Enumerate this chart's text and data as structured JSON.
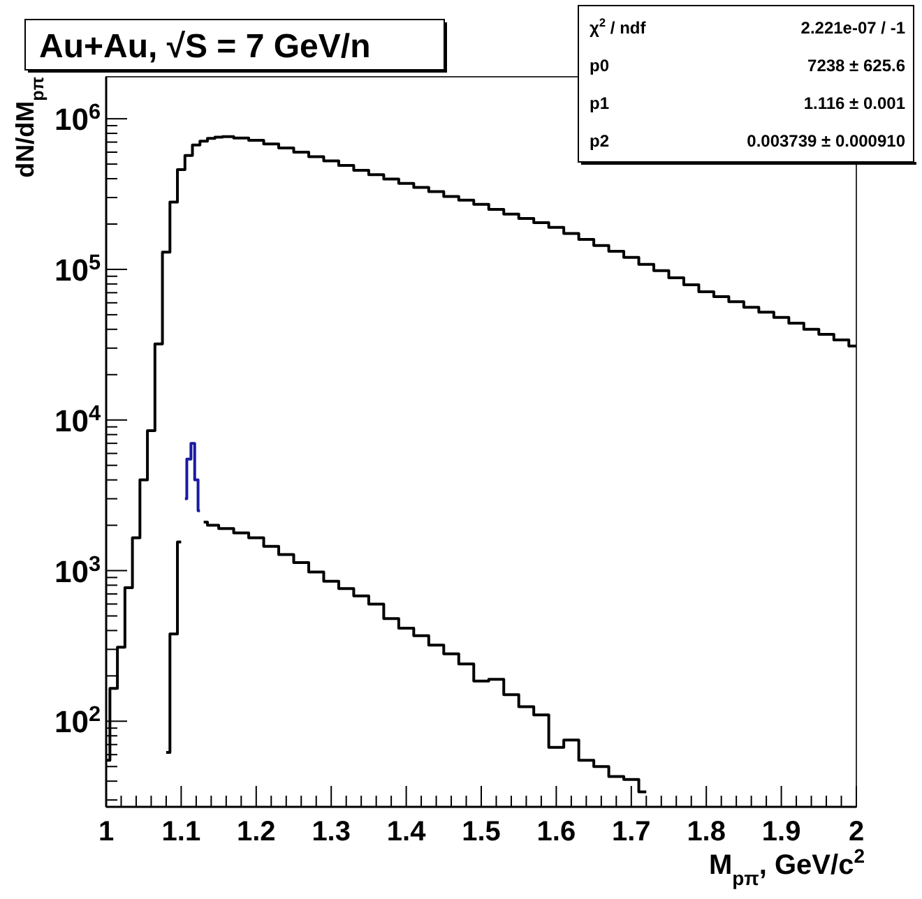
{
  "chart_data": {
    "type": "step",
    "title": "Au+Au, √S = 7 GeV/n",
    "xlabel": "M$_{pπ}$, GeV/c$^{2}$",
    "ylabel": "dN/dM$_{pπ}$",
    "log": "y",
    "grid": false,
    "xlim": [
      1,
      2
    ],
    "ylim": [
      27,
      1900000
    ],
    "xticks": [
      1,
      {
        "value": 1.02,
        "label": null
      },
      {
        "value": 1.04,
        "label": null
      },
      {
        "value": 1.06,
        "label": null
      },
      {
        "value": 1.08,
        "label": null
      },
      1.1,
      {
        "value": 1.12,
        "label": null
      },
      {
        "value": 1.14,
        "label": null
      },
      {
        "value": 1.16,
        "label": null
      },
      {
        "value": 1.18,
        "label": null
      },
      1.2,
      {
        "value": 1.22,
        "label": null
      },
      {
        "value": 1.24,
        "label": null
      },
      {
        "value": 1.26,
        "label": null
      },
      {
        "value": 1.28,
        "label": null
      },
      1.3,
      {
        "value": 1.32,
        "label": null
      },
      {
        "value": 1.34,
        "label": null
      },
      {
        "value": 1.36,
        "label": null
      },
      {
        "value": 1.38,
        "label": null
      },
      1.4,
      {
        "value": 1.42,
        "label": null
      },
      {
        "value": 1.44,
        "label": null
      },
      {
        "value": 1.46,
        "label": null
      },
      {
        "value": 1.48,
        "label": null
      },
      1.5,
      {
        "value": 1.52,
        "label": null
      },
      {
        "value": 1.54,
        "label": null
      },
      {
        "value": 1.56,
        "label": null
      },
      {
        "value": 1.58,
        "label": null
      },
      1.6,
      {
        "value": 1.62,
        "label": null
      },
      {
        "value": 1.64,
        "label": null
      },
      {
        "value": 1.66,
        "label": null
      },
      {
        "value": 1.68,
        "label": null
      },
      1.7,
      {
        "value": 1.72,
        "label": null
      },
      {
        "value": 1.74,
        "label": null
      },
      {
        "value": 1.76,
        "label": null
      },
      {
        "value": 1.78,
        "label": null
      },
      1.8,
      {
        "value": 1.82,
        "label": null
      },
      {
        "value": 1.84,
        "label": null
      },
      {
        "value": 1.86,
        "label": null
      },
      {
        "value": 1.88,
        "label": null
      },
      1.9,
      {
        "value": 1.92,
        "label": null
      },
      {
        "value": 1.94,
        "label": null
      },
      {
        "value": 1.96,
        "label": null
      },
      {
        "value": 1.98,
        "label": null
      },
      2
    ],
    "yticks": [
      {
        "value": 30,
        "label": null
      },
      {
        "value": 40,
        "label": null
      },
      {
        "value": 50,
        "label": null
      },
      {
        "value": 60,
        "label": null
      },
      {
        "value": 70,
        "label": null
      },
      {
        "value": 80,
        "label": null
      },
      {
        "value": 90,
        "label": null
      },
      {
        "value": 100,
        "label": "10$^{2}$"
      },
      {
        "value": 200,
        "label": null
      },
      {
        "value": 300,
        "label": null
      },
      {
        "value": 400,
        "label": null
      },
      {
        "value": 500,
        "label": null
      },
      {
        "value": 600,
        "label": null
      },
      {
        "value": 700,
        "label": null
      },
      {
        "value": 800,
        "label": null
      },
      {
        "value": 900,
        "label": null
      },
      {
        "value": 1000,
        "label": "10$^{3}$"
      },
      {
        "value": 2000,
        "label": null
      },
      {
        "value": 3000,
        "label": null
      },
      {
        "value": 4000,
        "label": null
      },
      {
        "value": 5000,
        "label": null
      },
      {
        "value": 6000,
        "label": null
      },
      {
        "value": 7000,
        "label": null
      },
      {
        "value": 8000,
        "label": null
      },
      {
        "value": 9000,
        "label": null
      },
      {
        "value": 10000,
        "label": "10$^{4}$"
      },
      {
        "value": 20000,
        "label": null
      },
      {
        "value": 30000,
        "label": null
      },
      {
        "value": 40000,
        "label": null
      },
      {
        "value": 50000,
        "label": null
      },
      {
        "value": 60000,
        "label": null
      },
      {
        "value": 70000,
        "label": null
      },
      {
        "value": 80000,
        "label": null
      },
      {
        "value": 90000,
        "label": null
      },
      {
        "value": 100000,
        "label": "10$^{5}$"
      },
      {
        "value": 200000,
        "label": null
      },
      {
        "value": 300000,
        "label": null
      },
      {
        "value": 400000,
        "label": null
      },
      {
        "value": 500000,
        "label": null
      },
      {
        "value": 600000,
        "label": null
      },
      {
        "value": 700000,
        "label": null
      },
      {
        "value": 800000,
        "label": null
      },
      {
        "value": 900000,
        "label": null
      },
      {
        "value": 1000000,
        "label": "10$^{6}$"
      }
    ],
    "annotations": [
      "χ$^{2}$ / ndf",
      "2.221e-07 / -1",
      "p0",
      "7238 ± 625.6",
      "p1",
      "1.116 ± 0.001",
      "p2",
      "0.003739 ± 0.000910"
    ],
    "series": [
      {
        "color": "#000000",
        "x": [
          1.0,
          1.01,
          1.02,
          1.03,
          1.04,
          1.05,
          1.06,
          1.07,
          1.08,
          1.09,
          1.1,
          1.11,
          1.12,
          1.13,
          1.14,
          1.15,
          1.16,
          1.18,
          1.2,
          1.22,
          1.24,
          1.26,
          1.28,
          1.3,
          1.32,
          1.34,
          1.36,
          1.38,
          1.4,
          1.42,
          1.44,
          1.46,
          1.48,
          1.5,
          1.52,
          1.54,
          1.56,
          1.58,
          1.6,
          1.62,
          1.64,
          1.66,
          1.68,
          1.7,
          1.72,
          1.74,
          1.76,
          1.78,
          1.8,
          1.82,
          1.84,
          1.86,
          1.88,
          1.9,
          1.92,
          1.94,
          1.96,
          1.98,
          2.0
        ],
        "values": [
          55,
          165,
          310,
          770,
          1650,
          4000,
          8500,
          32000,
          130000,
          280000,
          460000,
          570000,
          670000,
          710000,
          740000,
          755000,
          760000,
          745000,
          720000,
          680000,
          640000,
          600000,
          560000,
          525000,
          490000,
          455000,
          425000,
          398000,
          372000,
          350000,
          328000,
          305000,
          288000,
          270000,
          250000,
          233000,
          218000,
          204000,
          190000,
          173000,
          158000,
          144000,
          132000,
          120000,
          108000,
          98000,
          88000,
          79000,
          71000,
          66000,
          61000,
          56000,
          52000,
          48000,
          44000,
          40000,
          37000,
          34000,
          31000
        ]
      },
      {
        "color": "#000000",
        "x": [
          1.08,
          1.09,
          1.1,
          1.105,
          1.13,
          1.14,
          1.16,
          1.18,
          1.2,
          1.22,
          1.24,
          1.26,
          1.28,
          1.3,
          1.32,
          1.34,
          1.36,
          1.38,
          1.4,
          1.42,
          1.44,
          1.46,
          1.48,
          1.5,
          1.52,
          1.54,
          1.56,
          1.58,
          1.6,
          1.62,
          1.64,
          1.66,
          1.68,
          1.7,
          1.72
        ],
        "values": [
          62,
          380,
          1550,
          null,
          2100,
          2000,
          1900,
          1780,
          1650,
          1450,
          1280,
          1130,
          980,
          850,
          760,
          680,
          600,
          480,
          415,
          370,
          320,
          280,
          240,
          185,
          190,
          150,
          125,
          110,
          67,
          75,
          55,
          50,
          43,
          41,
          34
        ]
      },
      {
        "color": "#1a1aa0",
        "x": [
          1.105,
          1.11,
          1.116,
          1.12,
          1.125
        ],
        "values": [
          3000,
          5500,
          7000,
          4000,
          2500
        ]
      }
    ]
  }
}
